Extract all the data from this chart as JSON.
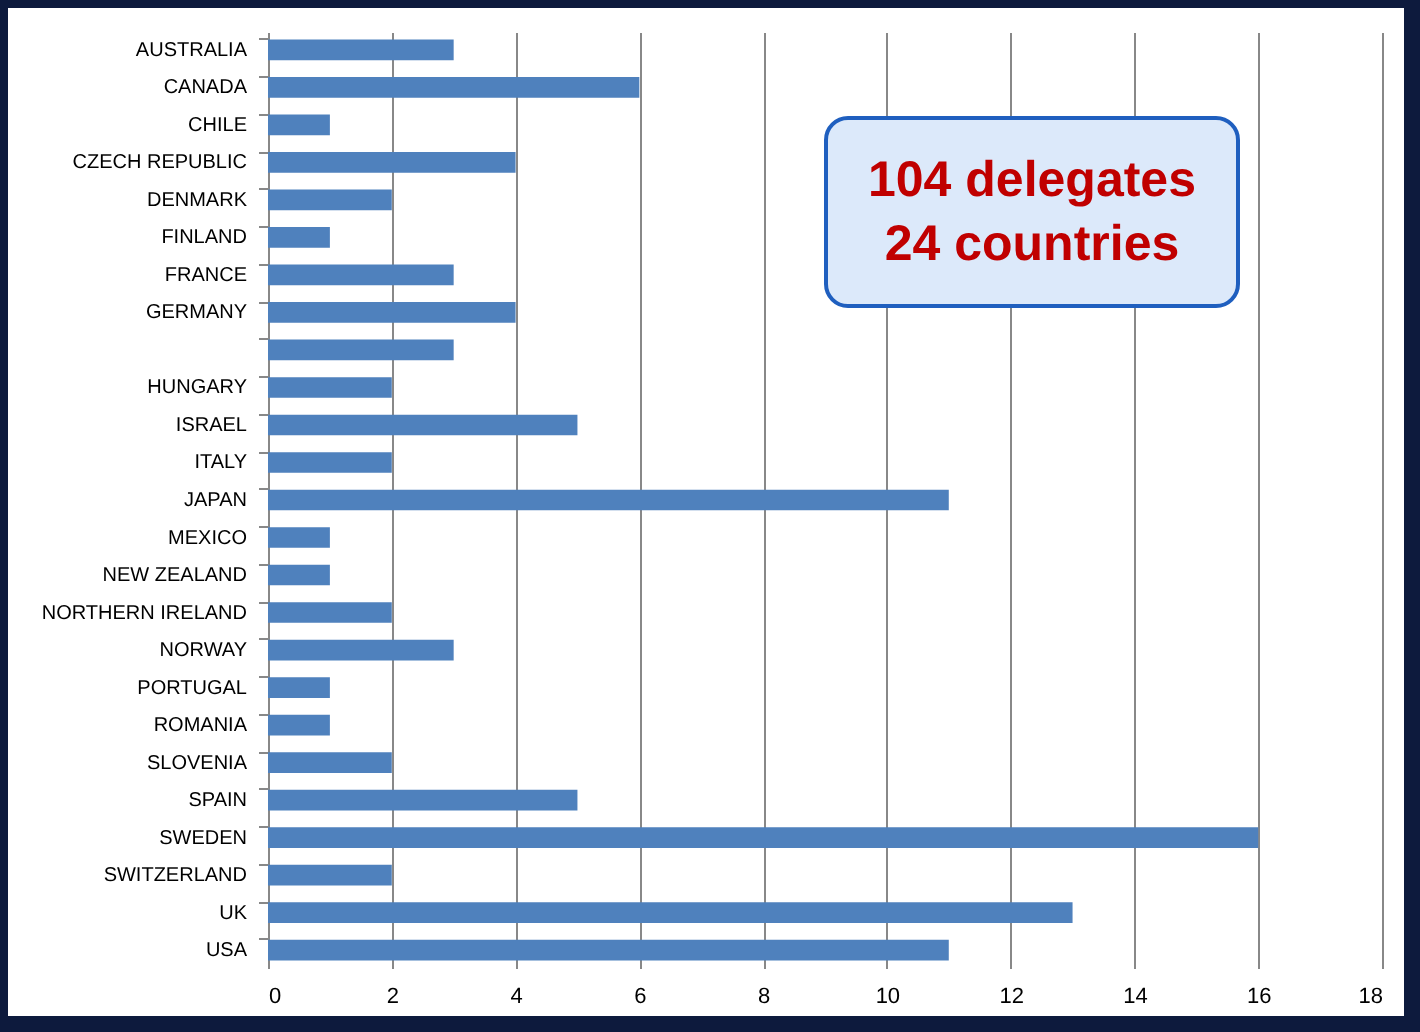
{
  "chart_data": {
    "type": "bar",
    "orientation": "horizontal",
    "categories": [
      "AUSTRALIA",
      "CANADA",
      "CHILE",
      "CZECH REPUBLIC",
      "DENMARK",
      "FINLAND",
      "FRANCE",
      "GERMANY",
      null,
      "HUNGARY",
      "ISRAEL",
      "ITALY",
      "JAPAN",
      "MEXICO",
      "NEW ZEALAND",
      "NORTHERN IRELAND",
      "NORWAY",
      "PORTUGAL",
      "ROMANIA",
      "SLOVENIA",
      "SPAIN",
      "SWEDEN",
      "SWITZERLAND",
      "UK",
      "USA"
    ],
    "values": [
      3,
      6,
      1,
      4,
      2,
      1,
      3,
      4,
      3,
      2,
      5,
      2,
      11,
      1,
      1,
      2,
      3,
      1,
      1,
      2,
      5,
      16,
      2,
      13,
      11
    ],
    "color": "#4f81bd",
    "xlim": [
      0,
      18
    ],
    "xticks": [
      0,
      2,
      4,
      6,
      8,
      10,
      12,
      14,
      16,
      18
    ],
    "grid": "x",
    "annotations": [
      "104 delegates",
      "24 countries"
    ]
  }
}
